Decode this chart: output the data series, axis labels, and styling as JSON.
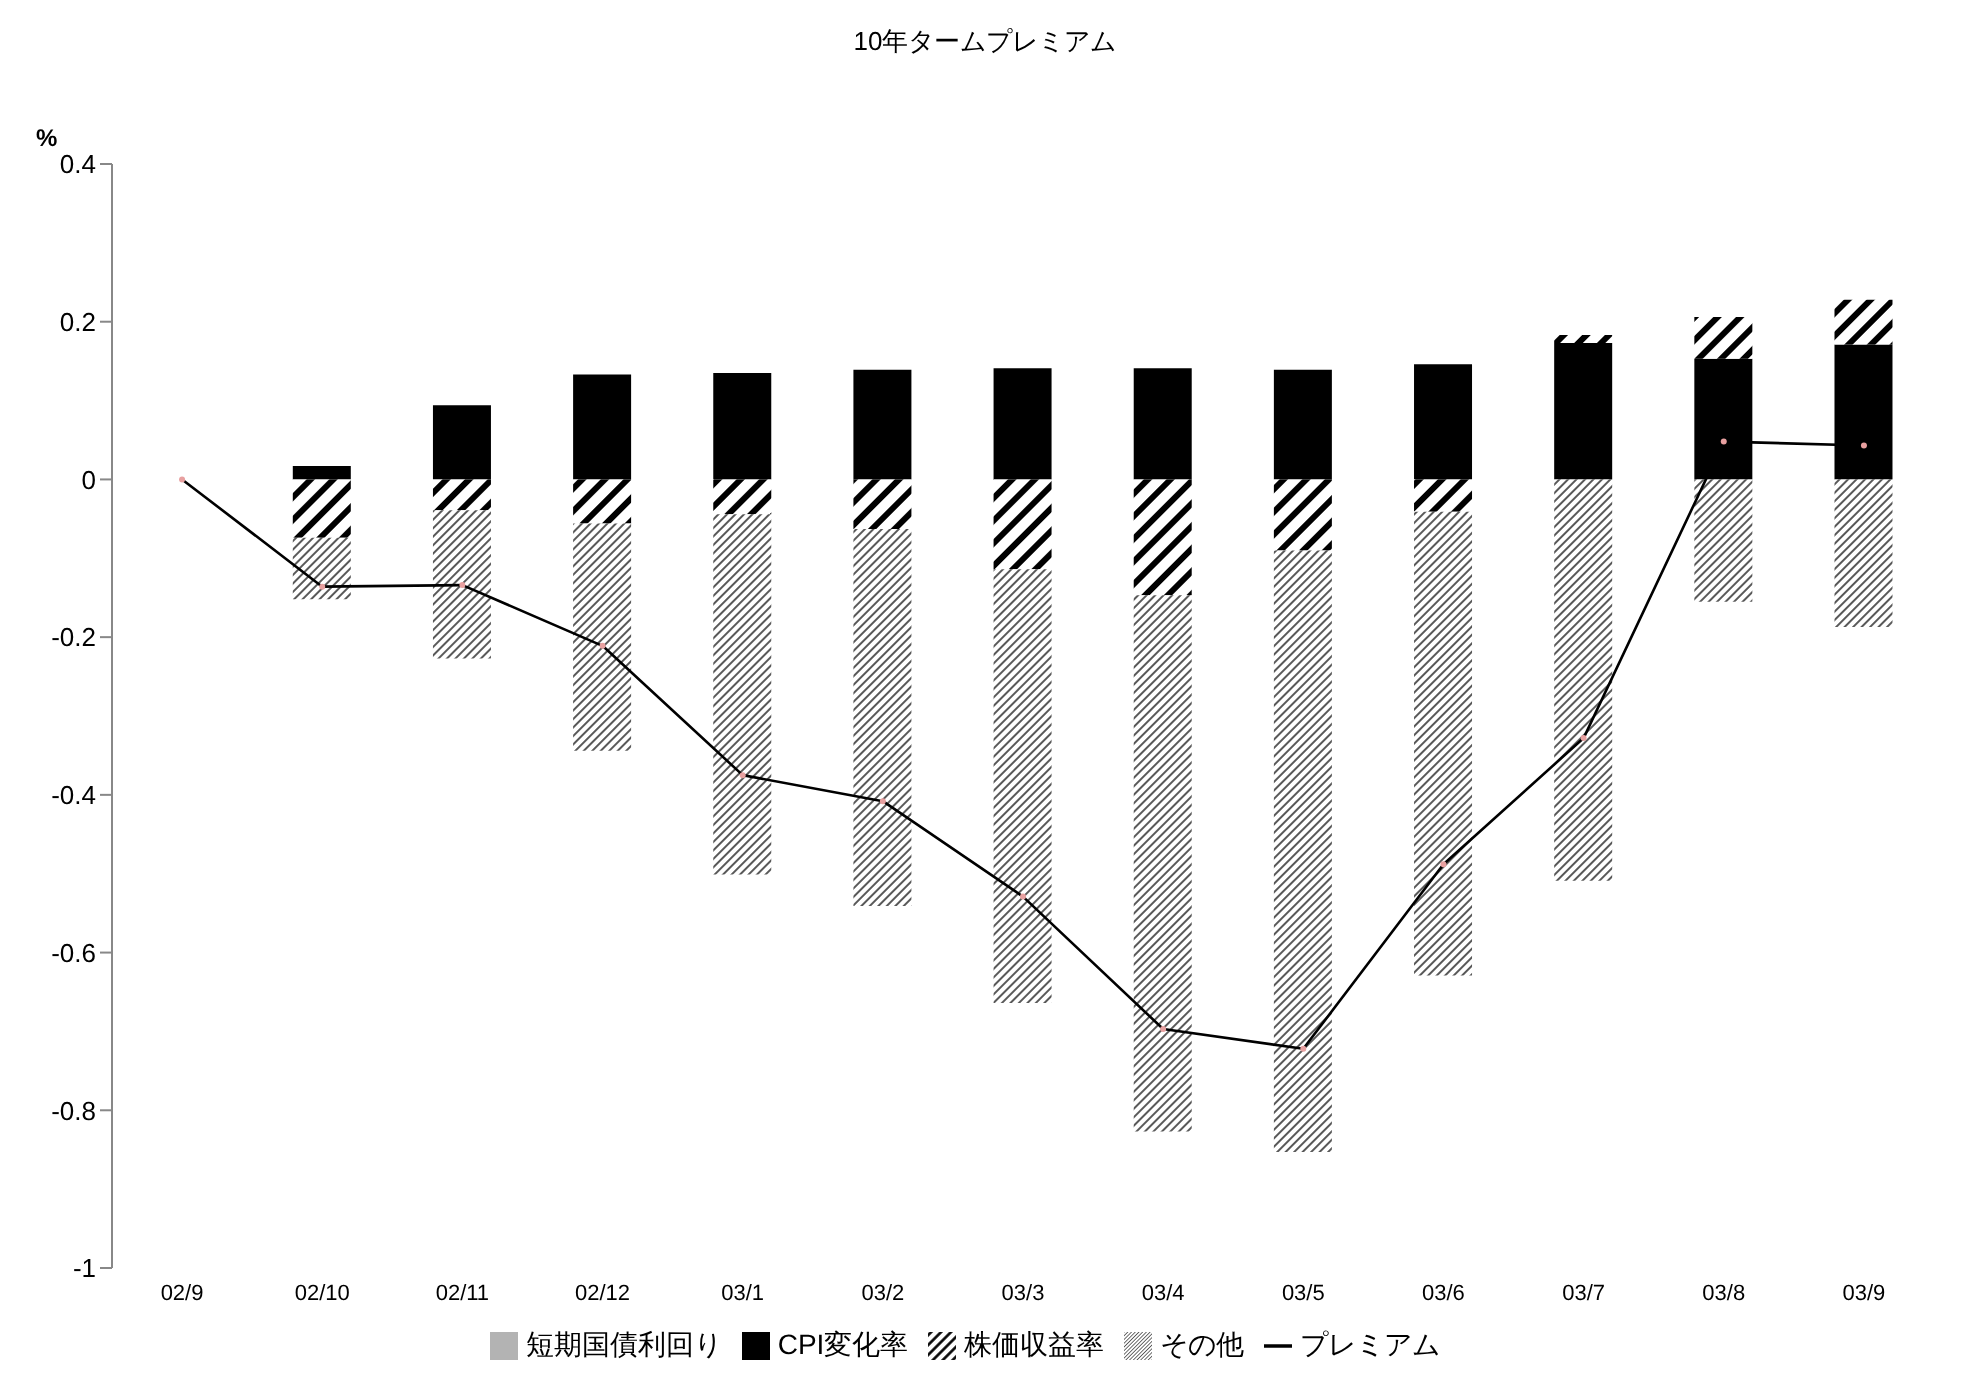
{
  "chart_data": {
    "type": "bar",
    "title": "10年タームプレミアム",
    "ylabel": "%",
    "stacked": true,
    "categories": [
      "02/9",
      "02/10",
      "02/11",
      "02/12",
      "03/1",
      "03/2",
      "03/3",
      "03/4",
      "03/5",
      "03/6",
      "03/7",
      "03/8",
      "03/9"
    ],
    "series": [
      {
        "name": "短期国債利回り",
        "color": "#b3b3b3",
        "values": [
          0,
          0,
          0,
          0,
          0,
          0,
          0,
          0,
          0,
          0,
          0,
          0,
          0
        ]
      },
      {
        "name": "CPI変化率",
        "color": "#000000",
        "values": [
          0,
          0.017,
          0.094,
          0.133,
          0.135,
          0.139,
          0.141,
          0.141,
          0.139,
          0.146,
          0.173,
          0.153,
          0.171
        ]
      },
      {
        "name": "株価収益率",
        "color": "#000000",
        "values": [
          0,
          -0.074,
          -0.039,
          -0.056,
          -0.044,
          -0.063,
          -0.114,
          -0.147,
          -0.09,
          -0.041,
          0.01,
          0.053,
          0.057
        ]
      },
      {
        "name": "その他",
        "color": "#595959",
        "values": [
          0,
          -0.078,
          -0.188,
          -0.288,
          -0.457,
          -0.478,
          -0.55,
          -0.68,
          -0.763,
          -0.588,
          -0.509,
          -0.155,
          -0.187
        ]
      },
      {
        "name": "プレミアム",
        "type": "line",
        "color": "#000000",
        "values": [
          0,
          -0.136,
          -0.134,
          -0.211,
          -0.375,
          -0.408,
          -0.529,
          -0.697,
          -0.722,
          -0.488,
          -0.328,
          0.048,
          0.043
        ]
      }
    ],
    "ylim": [
      -1,
      0.4
    ],
    "yticks": [
      -1,
      -0.8,
      -0.6,
      -0.4,
      -0.2,
      0,
      0.2,
      0.4
    ],
    "grid": false,
    "legend": "bottom",
    "marker": "circle",
    "line_style": "solid"
  }
}
